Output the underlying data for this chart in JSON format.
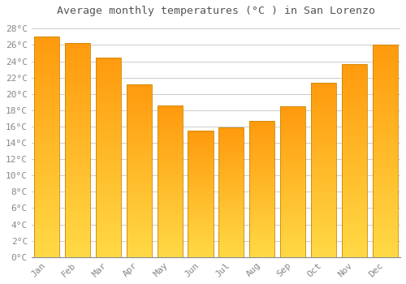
{
  "months": [
    "Jan",
    "Feb",
    "Mar",
    "Apr",
    "May",
    "Jun",
    "Jul",
    "Aug",
    "Sep",
    "Oct",
    "Nov",
    "Dec"
  ],
  "values": [
    27.0,
    26.2,
    24.5,
    21.2,
    18.6,
    15.5,
    15.9,
    16.7,
    18.5,
    21.4,
    23.7,
    26.0
  ],
  "bar_color_top": "#FFA500",
  "bar_color_bottom": "#FFCC44",
  "bar_edge_color": "#CC8800",
  "title": "Average monthly temperatures (°C ) in San Lorenzo",
  "ylim": [
    0,
    29
  ],
  "yticks": [
    0,
    2,
    4,
    6,
    8,
    10,
    12,
    14,
    16,
    18,
    20,
    22,
    24,
    26,
    28
  ],
  "ytick_labels": [
    "0°C",
    "2°C",
    "4°C",
    "6°C",
    "8°C",
    "10°C",
    "12°C",
    "14°C",
    "16°C",
    "18°C",
    "20°C",
    "22°C",
    "24°C",
    "26°C",
    "28°C"
  ],
  "background_color": "#ffffff",
  "grid_color": "#cccccc",
  "title_fontsize": 9.5,
  "tick_fontsize": 8,
  "font_color": "#888888",
  "title_color": "#555555"
}
